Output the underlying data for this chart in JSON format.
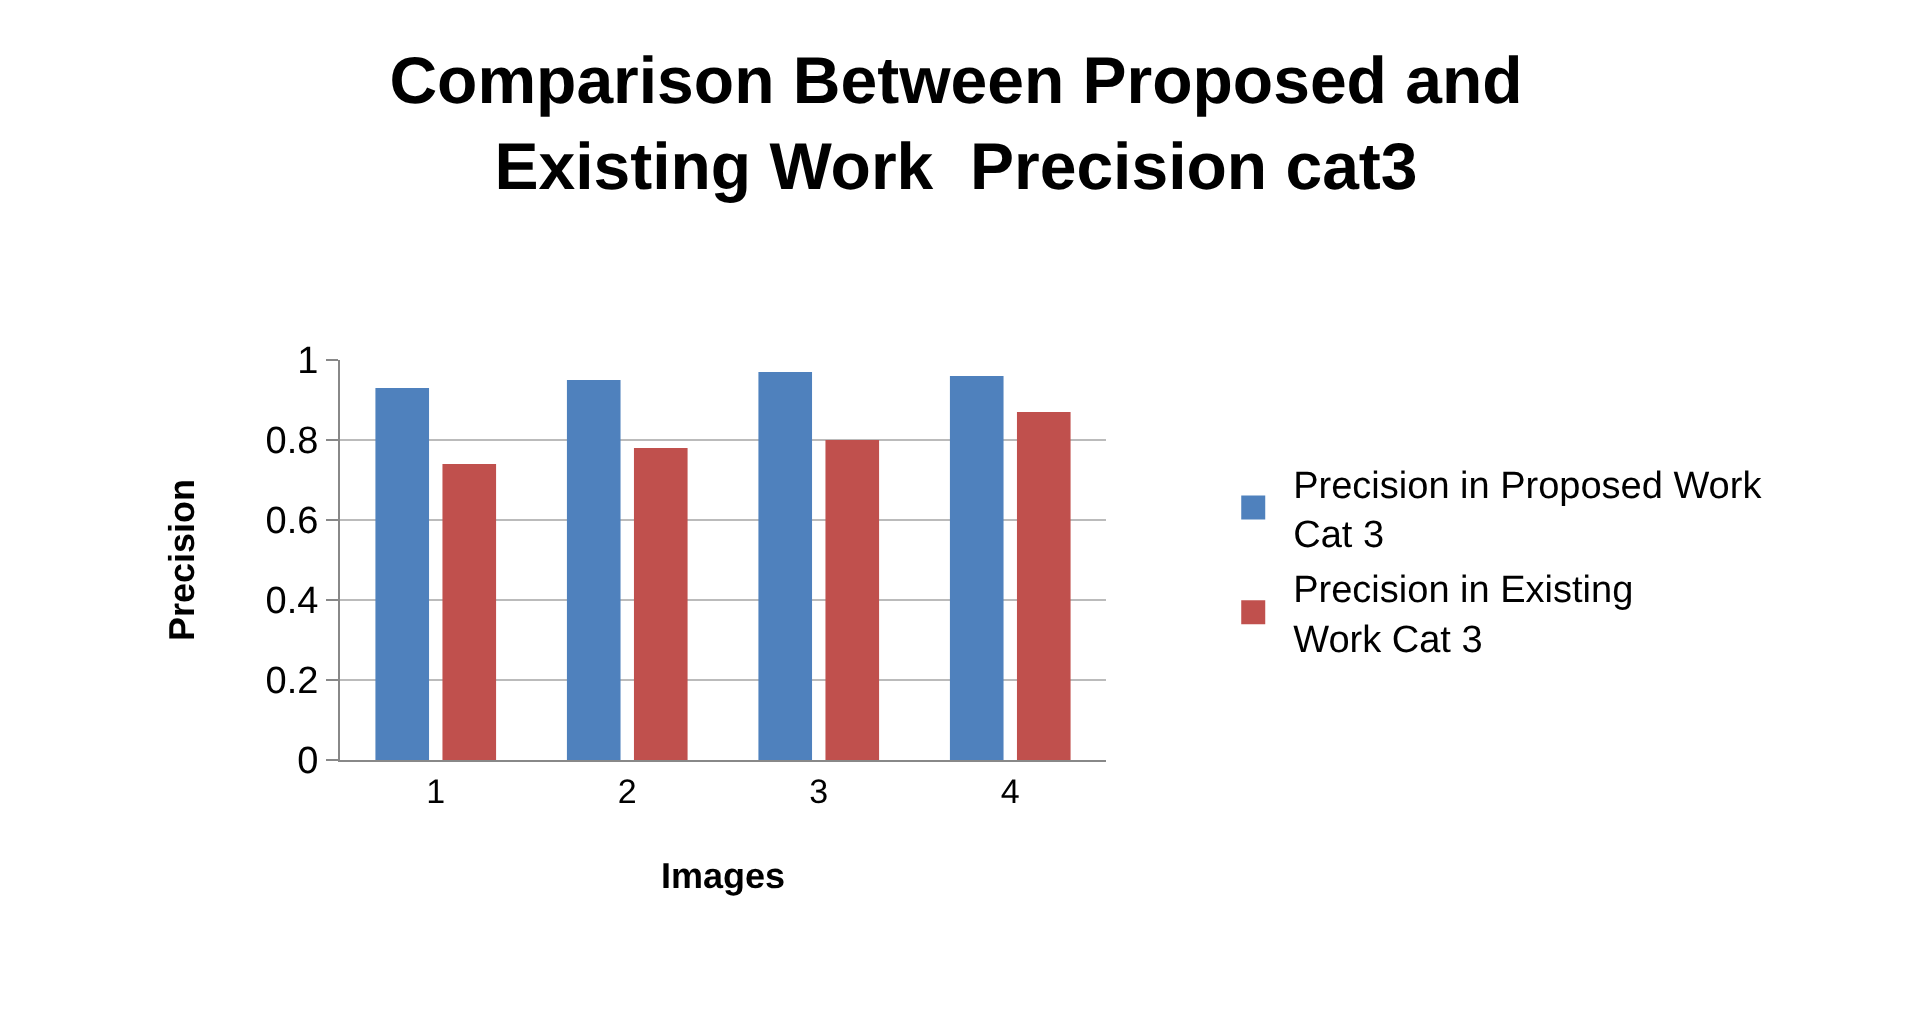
{
  "chart_data": {
    "type": "bar",
    "title": "Comparison Between Proposed and Existing Work  Precision cat3",
    "xlabel": "Images",
    "ylabel": "Precision",
    "categories": [
      "1",
      "2",
      "3",
      "4"
    ],
    "series": [
      {
        "name": "Precision in Proposed Work Cat 3",
        "color": "#4f81bd",
        "values": [
          0.93,
          0.95,
          0.97,
          0.96
        ]
      },
      {
        "name": "Precision in Existing  Work Cat 3",
        "color": "#c0504d",
        "values": [
          0.74,
          0.78,
          0.8,
          0.87
        ]
      }
    ],
    "ylim": [
      0,
      1
    ],
    "yticks": [
      0,
      0.2,
      0.4,
      0.6,
      0.8,
      1
    ],
    "grid": "y",
    "legend": "right"
  }
}
